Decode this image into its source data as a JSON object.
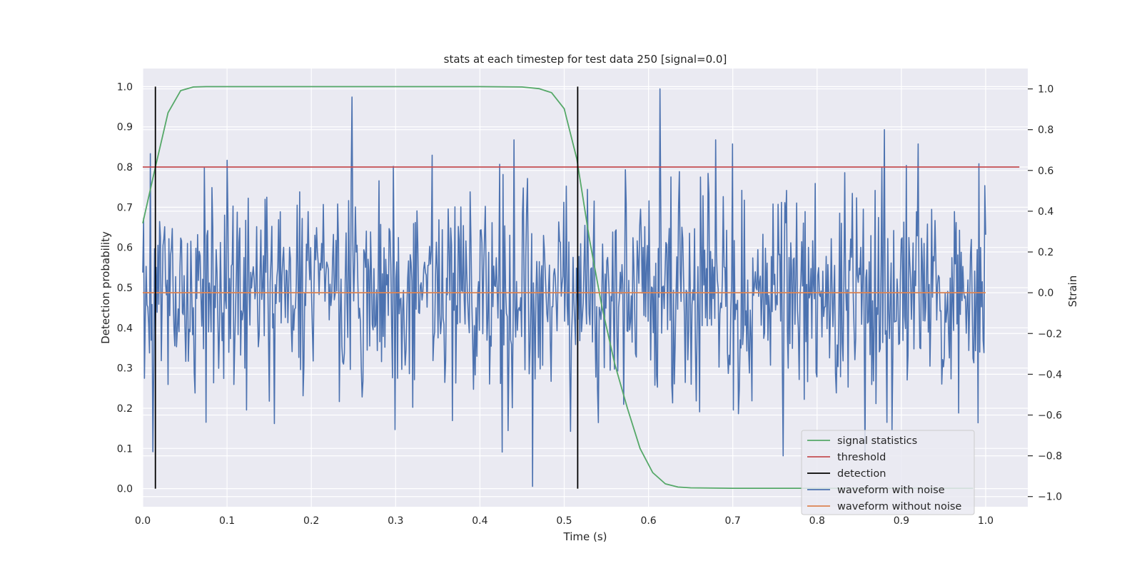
{
  "chart_data": {
    "type": "line",
    "title": "stats at each timestep for test data 250 [signal=0.0]",
    "xlabel": "Time (s)",
    "ylabel_left": "Detection probability",
    "ylabel_right": "Strain",
    "xlim": [
      0.0,
      1.05
    ],
    "ylim_left": [
      -0.045,
      1.045
    ],
    "ylim_right": [
      -1.05,
      1.1
    ],
    "x_ticks": [
      0.0,
      0.1,
      0.2,
      0.3,
      0.4,
      0.5,
      0.6,
      0.7,
      0.8,
      0.9,
      1.0
    ],
    "x_tick_labels": [
      "0.0",
      "0.1",
      "0.2",
      "0.3",
      "0.4",
      "0.5",
      "0.6",
      "0.7",
      "0.8",
      "0.9",
      "1.0"
    ],
    "y_left_ticks": [
      0.0,
      0.1,
      0.2,
      0.3,
      0.4,
      0.5,
      0.6,
      0.7,
      0.8,
      0.9,
      1.0
    ],
    "y_left_tick_labels": [
      "0.0",
      "0.1",
      "0.2",
      "0.3",
      "0.4",
      "0.5",
      "0.6",
      "0.7",
      "0.8",
      "0.9",
      "1.0"
    ],
    "y_right_ticks": [
      -1.0,
      -0.8,
      -0.6,
      -0.4,
      -0.2,
      0.0,
      0.2,
      0.4,
      0.6,
      0.8,
      1.0
    ],
    "y_right_tick_labels": [
      "−1.0",
      "−0.8",
      "−0.6",
      "−0.4",
      "−0.2",
      "0.0",
      "0.2",
      "0.4",
      "0.6",
      "0.8",
      "1.0"
    ],
    "grid": true,
    "legend_placement": "lower right",
    "colors": {
      "signal_statistics": "#55a868",
      "threshold": "#c44e52",
      "detection": "#000000",
      "waveform_with_noise": "#4c72b0",
      "waveform_without_noise": "#dd8452",
      "background": "#eaeaf2",
      "grid": "#ffffff"
    },
    "legend": [
      "signal statistics",
      "threshold",
      "detection",
      "waveform with noise",
      "waveform without noise"
    ],
    "series": [
      {
        "name": "signal statistics",
        "axis": "left",
        "x": [
          0.0,
          0.015,
          0.03,
          0.045,
          0.06,
          0.075,
          0.1,
          0.2,
          0.3,
          0.4,
          0.45,
          0.47,
          0.485,
          0.5,
          0.515,
          0.53,
          0.545,
          0.56,
          0.575,
          0.59,
          0.605,
          0.62,
          0.635,
          0.65,
          0.7,
          0.8,
          0.9,
          0.985
        ],
        "y": [
          0.66,
          0.8,
          0.935,
          0.99,
          0.999,
          1.0,
          1.0,
          1.0,
          1.0,
          1.0,
          0.999,
          0.995,
          0.985,
          0.945,
          0.82,
          0.62,
          0.45,
          0.31,
          0.2,
          0.1,
          0.04,
          0.012,
          0.004,
          0.002,
          0.001,
          0.001,
          0.001,
          0.001
        ]
      },
      {
        "name": "threshold",
        "axis": "left",
        "x": [
          0.0,
          1.04
        ],
        "y": [
          0.8,
          0.8
        ]
      },
      {
        "name": "waveform without noise",
        "axis": "right",
        "x": [
          0.0,
          1.0
        ],
        "y": [
          0.0,
          0.0
        ]
      }
    ],
    "detections": [
      {
        "x": 0.015,
        "ymin": 0.0,
        "ymax": 1.0
      },
      {
        "x": 0.516,
        "ymin": 0.0,
        "ymax": 1.0
      }
    ],
    "noise_waveform": {
      "name": "waveform with noise",
      "axis": "right",
      "n_points": 1000,
      "x_range": [
        0.0,
        1.0
      ],
      "std": 0.25,
      "min": -0.95,
      "max": 1.0,
      "peaks": [
        {
          "x": 0.012,
          "y": -0.78
        },
        {
          "x": 0.1,
          "y": 0.65
        },
        {
          "x": 0.248,
          "y": 0.96
        },
        {
          "x": 0.297,
          "y": 0.62
        },
        {
          "x": 0.44,
          "y": 0.75
        },
        {
          "x": 0.462,
          "y": -0.95
        },
        {
          "x": 0.508,
          "y": -0.68
        },
        {
          "x": 0.614,
          "y": 1.0
        },
        {
          "x": 0.68,
          "y": 0.75
        },
        {
          "x": 0.7,
          "y": 0.73
        },
        {
          "x": 0.76,
          "y": -0.8
        },
        {
          "x": 0.88,
          "y": 0.8
        },
        {
          "x": 0.92,
          "y": 0.73
        },
        {
          "x": 0.968,
          "y": -0.59
        }
      ]
    }
  }
}
